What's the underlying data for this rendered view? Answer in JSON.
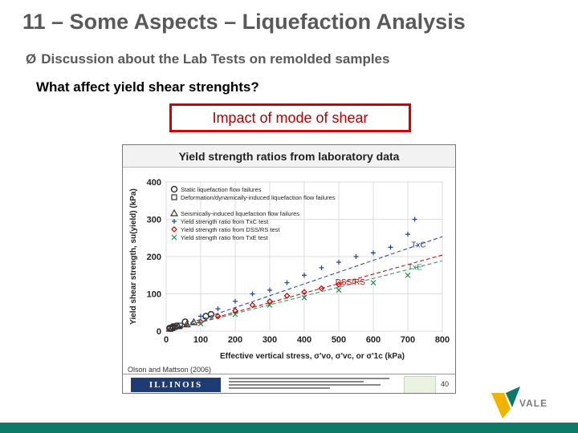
{
  "slide": {
    "title": "11 – Some Aspects – Liquefaction Analysis",
    "bullet_arrow": "Ø",
    "bullet": "Discussion about the Lab Tests on remolded samples",
    "question": "What affect yield shear strenghts?",
    "callout": "Impact of mode of shear"
  },
  "figure": {
    "header": "Yield strength ratios from laboratory data",
    "credit": "Olson and Mattson (2006)",
    "university_logo": "ILLINOIS",
    "page_number": "40"
  },
  "chart_data": {
    "type": "scatter",
    "title": "Yield strength ratios from laboratory data",
    "xlabel": "Effective vertical stress, σ'vo, σ'vc, or σ'1c (kPa)",
    "ylabel": "Yield shear strength, su(yield) (kPa)",
    "xlim": [
      0,
      800
    ],
    "ylim": [
      0,
      400
    ],
    "xticks": [
      0,
      100,
      200,
      300,
      400,
      500,
      600,
      700,
      800
    ],
    "yticks": [
      0,
      100,
      200,
      300,
      400
    ],
    "grid": true,
    "legend_position": "top-left",
    "legend": [
      "Static liquefaction flow failures",
      "Deformation/dynamically-induced liquefaction flow failures",
      "Seismically-induced liquefaction flow failures",
      "Yield strength ratio from TxC test",
      "Yield strength ratio from DSS/RS test",
      "Yield strength ratio from TxE test"
    ],
    "trend_labels": [
      {
        "label": "TxC",
        "x": 710,
        "y": 225
      },
      {
        "label": "TxE",
        "x": 700,
        "y": 165
      },
      {
        "label": "DSS/RS",
        "x": 490,
        "y": 125
      }
    ],
    "series": [
      {
        "name": "Static liquefaction flow failures",
        "marker": "circle",
        "color": "#333333",
        "points": [
          [
            10,
            8
          ],
          [
            20,
            12
          ],
          [
            30,
            14
          ],
          [
            55,
            25
          ],
          [
            115,
            40
          ],
          [
            130,
            45
          ]
        ]
      },
      {
        "name": "Deformation/dynamically-induced liquefaction flow failures",
        "marker": "square",
        "color": "#333333",
        "points": [
          [
            12,
            6
          ],
          [
            18,
            9
          ],
          [
            25,
            11
          ],
          [
            40,
            15
          ]
        ]
      },
      {
        "name": "Seismically-induced liquefaction flow failures",
        "marker": "triangle",
        "color": "#333333",
        "points": [
          [
            15,
            8
          ],
          [
            35,
            13
          ],
          [
            60,
            18
          ],
          [
            80,
            24
          ]
        ]
      },
      {
        "name": "Yield strength ratio from TxC test",
        "marker": "plus",
        "color": "#1f3fa0",
        "points": [
          [
            100,
            40
          ],
          [
            150,
            60
          ],
          [
            200,
            80
          ],
          [
            250,
            100
          ],
          [
            300,
            110
          ],
          [
            350,
            130
          ],
          [
            400,
            150
          ],
          [
            450,
            170
          ],
          [
            500,
            185
          ],
          [
            550,
            200
          ],
          [
            600,
            210
          ],
          [
            650,
            225
          ],
          [
            700,
            260
          ],
          [
            720,
            300
          ]
        ]
      },
      {
        "name": "Yield strength ratio from DSS/RS test",
        "marker": "diamond",
        "color": "#c00000",
        "points": [
          [
            100,
            25
          ],
          [
            150,
            40
          ],
          [
            200,
            55
          ],
          [
            250,
            70
          ],
          [
            300,
            80
          ],
          [
            350,
            95
          ],
          [
            400,
            105
          ],
          [
            450,
            115
          ],
          [
            500,
            125
          ]
        ]
      },
      {
        "name": "Yield strength ratio from TxE test",
        "marker": "x",
        "color": "#2e8b57",
        "points": [
          [
            100,
            20
          ],
          [
            200,
            45
          ],
          [
            300,
            70
          ],
          [
            400,
            90
          ],
          [
            500,
            110
          ],
          [
            600,
            130
          ],
          [
            700,
            150
          ]
        ]
      }
    ]
  },
  "branding": {
    "company": "VALE",
    "accent_color": "#0d7a68"
  }
}
